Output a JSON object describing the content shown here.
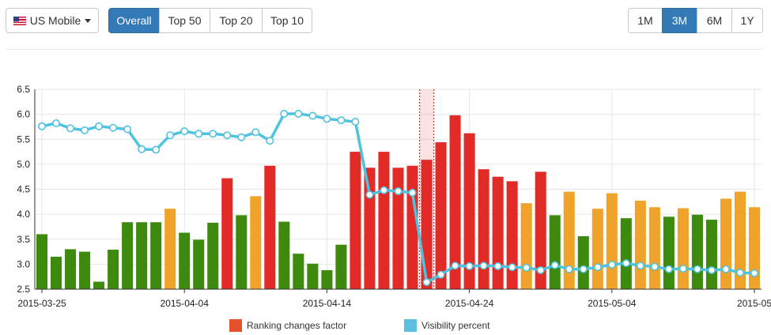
{
  "toolbar": {
    "country_label": "US Mobile",
    "tabs": [
      "Overall",
      "Top 50",
      "Top 20",
      "Top 10"
    ],
    "active_tab": "Overall",
    "periods": [
      "1M",
      "3M",
      "6M",
      "1Y"
    ],
    "active_period": "3M"
  },
  "colors": {
    "accent": "#337ab7",
    "green": "#3d8a0f",
    "orange": "#f0a32a",
    "red": "#e22a26",
    "line": "#4ec3e0",
    "legend_ranking": "#e3512d",
    "legend_visibility": "#5bc0de"
  },
  "chart_data": {
    "type": "bar+line",
    "x": [
      "2015-03-25",
      "2015-03-26",
      "2015-03-27",
      "2015-03-28",
      "2015-03-29",
      "2015-03-30",
      "2015-03-31",
      "2015-04-01",
      "2015-04-02",
      "2015-04-03",
      "2015-04-04",
      "2015-04-05",
      "2015-04-06",
      "2015-04-07",
      "2015-04-08",
      "2015-04-09",
      "2015-04-10",
      "2015-04-11",
      "2015-04-12",
      "2015-04-13",
      "2015-04-14",
      "2015-04-15",
      "2015-04-16",
      "2015-04-17",
      "2015-04-18",
      "2015-04-19",
      "2015-04-20",
      "2015-04-21",
      "2015-04-22",
      "2015-04-23",
      "2015-04-24",
      "2015-04-25",
      "2015-04-26",
      "2015-04-27",
      "2015-04-28",
      "2015-04-29",
      "2015-04-30",
      "2015-05-01",
      "2015-05-02",
      "2015-05-03",
      "2015-05-04",
      "2015-05-05",
      "2015-05-06",
      "2015-05-07",
      "2015-05-08",
      "2015-05-09",
      "2015-05-10",
      "2015-05-11",
      "2015-05-12",
      "2015-05-13",
      "2015-05-14"
    ],
    "ranking_changes_factor": [
      3.6,
      3.15,
      3.3,
      3.25,
      2.65,
      3.29,
      3.84,
      3.84,
      3.84,
      4.11,
      3.63,
      3.49,
      3.83,
      4.72,
      3.98,
      4.36,
      4.97,
      3.85,
      3.21,
      3.01,
      2.88,
      3.39,
      5.25,
      4.93,
      5.25,
      4.93,
      4.97,
      5.09,
      5.44,
      5.98,
      5.62,
      4.9,
      4.75,
      4.66,
      4.22,
      4.85,
      3.98,
      4.45,
      3.56,
      4.11,
      4.42,
      3.92,
      4.27,
      4.14,
      3.95,
      4.12,
      3.99,
      3.89,
      4.31,
      4.45,
      4.14
    ],
    "bar_colors": [
      "green",
      "green",
      "green",
      "green",
      "green",
      "green",
      "green",
      "green",
      "green",
      "orange",
      "green",
      "green",
      "green",
      "red",
      "green",
      "orange",
      "red",
      "green",
      "green",
      "green",
      "green",
      "green",
      "red",
      "red",
      "red",
      "red",
      "red",
      "red",
      "red",
      "red",
      "red",
      "red",
      "red",
      "red",
      "orange",
      "red",
      "green",
      "orange",
      "green",
      "orange",
      "orange",
      "green",
      "orange",
      "orange",
      "green",
      "orange",
      "green",
      "green",
      "orange",
      "orange",
      "orange"
    ],
    "visibility_percent": [
      5.76,
      5.82,
      5.72,
      5.68,
      5.76,
      5.73,
      5.7,
      5.3,
      5.29,
      5.58,
      5.66,
      5.61,
      5.61,
      5.58,
      5.54,
      5.64,
      5.47,
      6.01,
      6.01,
      5.97,
      5.91,
      5.88,
      5.85,
      4.39,
      4.48,
      4.46,
      4.43,
      2.64,
      2.79,
      2.97,
      2.96,
      2.97,
      2.96,
      2.94,
      2.93,
      2.88,
      2.98,
      2.9,
      2.9,
      2.94,
      2.99,
      3.02,
      2.97,
      2.95,
      2.9,
      2.91,
      2.9,
      2.88,
      2.9,
      2.83,
      2.82
    ],
    "highlight_index": 27,
    "ylim": [
      2.5,
      6.5
    ],
    "yticks": [
      "2.5",
      "3.0",
      "3.5",
      "4.0",
      "4.5",
      "5.0",
      "5.5",
      "6.0",
      "6.5"
    ],
    "xtick_labels": [
      {
        "label": "2015-03-25",
        "index": 0
      },
      {
        "label": "2015-04-04",
        "index": 10
      },
      {
        "label": "2015-04-14",
        "index": 20
      },
      {
        "label": "2015-04-24",
        "index": 30
      },
      {
        "label": "2015-05-04",
        "index": 40
      },
      {
        "label": "2015-05",
        "index": 50
      }
    ],
    "grid": true,
    "legend": [
      "Ranking changes factor",
      "Visibility percent"
    ],
    "legend_position": "bottom"
  }
}
